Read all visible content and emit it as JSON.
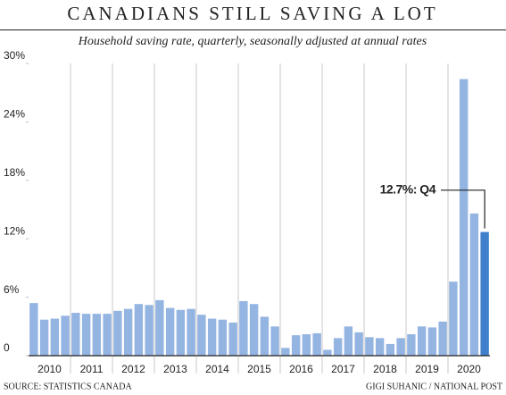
{
  "chart_data": {
    "type": "bar",
    "title": "CANADIANS STILL SAVING A LOT",
    "subtitle": "Household saving rate, quarterly, seasonally adjusted at annual rates",
    "categories": [
      "2010",
      "2011",
      "2012",
      "2013",
      "2014",
      "2015",
      "2016",
      "2017",
      "2018",
      "2019",
      "2020"
    ],
    "values": [
      [
        5.4,
        3.7,
        3.8,
        4.1
      ],
      [
        4.4,
        4.3,
        4.3,
        4.3
      ],
      [
        4.6,
        4.8,
        5.3,
        5.2
      ],
      [
        5.7,
        4.9,
        4.7,
        4.8
      ],
      [
        4.2,
        3.8,
        3.7,
        3.4
      ],
      [
        5.6,
        5.3,
        4.0,
        3.0
      ],
      [
        0.8,
        2.1,
        2.2,
        2.3
      ],
      [
        0.6,
        1.8,
        3.0,
        2.4
      ],
      [
        1.9,
        1.8,
        1.2,
        1.8
      ],
      [
        2.2,
        3.0,
        2.9,
        3.5
      ],
      [
        7.6,
        28.4,
        14.6,
        12.7
      ]
    ],
    "color": "#94b4e2",
    "highlight_color": "#3f7fcb",
    "annotation": "12.7%: Q4",
    "ylim": [
      0,
      30
    ],
    "yticks": [
      0,
      {
        "value": 6,
        "label": "6%"
      },
      {
        "value": 12,
        "label": "12%"
      },
      {
        "value": 18,
        "label": "18%"
      },
      {
        "value": 24,
        "label": "24%"
      },
      {
        "value": 30,
        "label": "30%"
      }
    ],
    "source": "SOURCE: STATISTICS CANADA",
    "credit": "GIGI SUHANIC / NATIONAL POST"
  }
}
